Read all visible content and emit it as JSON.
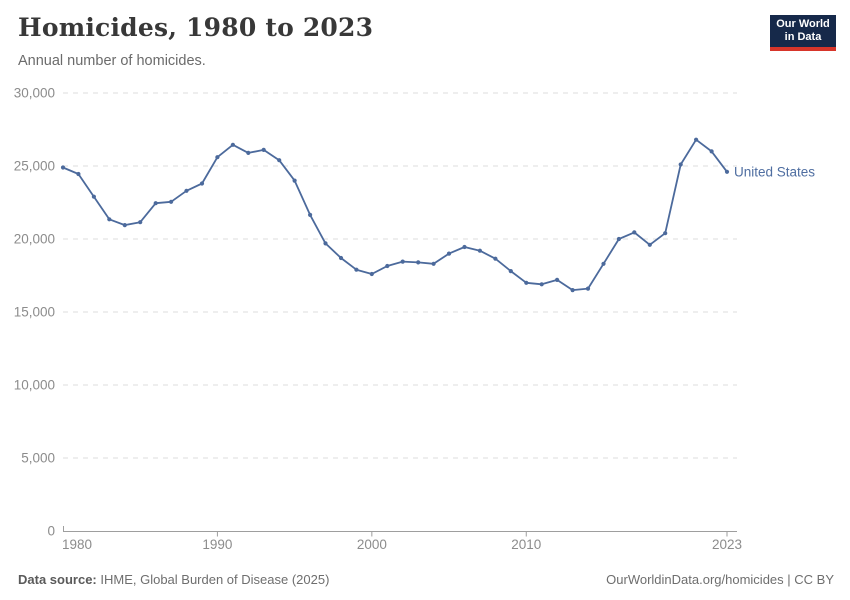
{
  "header": {
    "title": "Homicides, 1980 to 2023",
    "subtitle": "Annual number of homicides.",
    "logo": {
      "line1": "Our World",
      "line2": "in Data",
      "bg_color": "#16294a",
      "accent_color": "#d7352a"
    }
  },
  "chart_data": {
    "type": "line",
    "title": "Homicides, 1980 to 2023",
    "subtitle": "Annual number of homicides.",
    "x": [
      1980,
      1981,
      1982,
      1983,
      1984,
      1985,
      1986,
      1987,
      1988,
      1989,
      1990,
      1991,
      1992,
      1993,
      1994,
      1995,
      1996,
      1997,
      1998,
      1999,
      2000,
      2001,
      2002,
      2003,
      2004,
      2005,
      2006,
      2007,
      2008,
      2009,
      2010,
      2011,
      2012,
      2013,
      2014,
      2015,
      2016,
      2017,
      2018,
      2019,
      2020,
      2021,
      2022,
      2023
    ],
    "series": [
      {
        "name": "United States",
        "color": "#4c6a9c",
        "values": [
          24900,
          24450,
          22900,
          21350,
          20950,
          21150,
          22450,
          22550,
          23300,
          23800,
          25600,
          26450,
          25900,
          26100,
          25400,
          24000,
          21650,
          19700,
          18700,
          17900,
          17600,
          18150,
          18450,
          18400,
          18300,
          19000,
          19450,
          19200,
          18650,
          17800,
          17000,
          16900,
          17200,
          16500,
          16600,
          18300,
          20000,
          20450,
          19600,
          20400,
          25100,
          26800,
          26000,
          24600
        ]
      }
    ],
    "xlabel": "",
    "ylabel": "",
    "ylim": [
      0,
      30000
    ],
    "xlim": [
      1980,
      2023
    ],
    "yticks": [
      0,
      5000,
      10000,
      15000,
      20000,
      25000,
      30000
    ],
    "ytick_labels": [
      "0",
      "5,000",
      "10,000",
      "15,000",
      "20,000",
      "25,000",
      "30,000"
    ],
    "xticks": [
      1980,
      1990,
      2000,
      2010,
      2023
    ],
    "xtick_labels": [
      "1980",
      "1990",
      "2000",
      "2010",
      "2023"
    ],
    "grid": "horizontal-dashed",
    "legend_position": "end-of-line-label",
    "marker": "dot"
  },
  "footer": {
    "source_label": "Data source:",
    "source_text": " IHME, Global Burden of Disease (2025)",
    "credit": "OurWorldinData.org/homicides | CC BY"
  }
}
